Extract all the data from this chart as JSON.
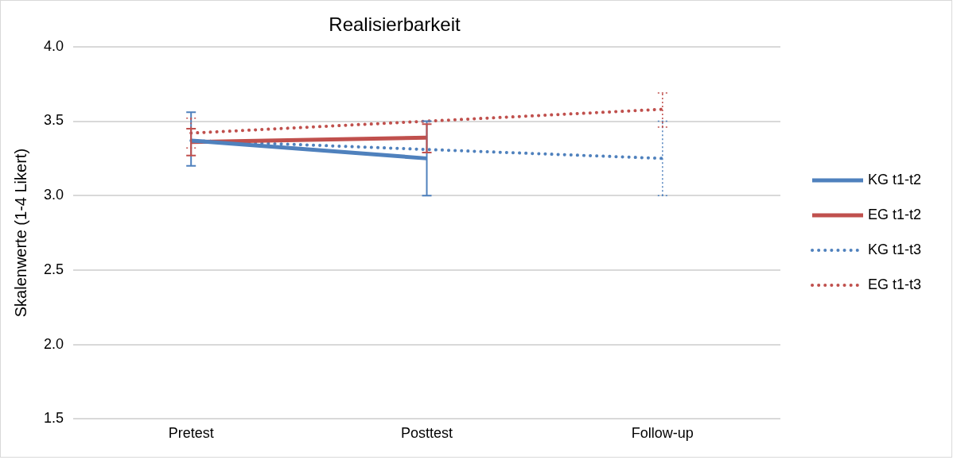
{
  "chart_data": {
    "type": "line",
    "title": "Realisierbarkeit",
    "ylabel": "Skalenwerte (1-4 Likert)",
    "categories": [
      "Pretest",
      "Posttest",
      "Follow-up"
    ],
    "series": [
      {
        "name": "KG t1-t2",
        "color": "#4f81bd",
        "line_style": "solid",
        "values": [
          3.37,
          3.25,
          null
        ],
        "errors": [
          [
            3.2,
            3.56
          ],
          [
            3.0,
            3.5
          ],
          null
        ]
      },
      {
        "name": "EG t1-t2",
        "color": "#c0504d",
        "line_style": "solid",
        "values": [
          3.36,
          3.39,
          null
        ],
        "errors": [
          [
            3.27,
            3.45
          ],
          [
            3.29,
            3.48
          ],
          null
        ]
      },
      {
        "name": "KG t1-t3",
        "color": "#4f81bd",
        "line_style": "dotted",
        "values": [
          3.37,
          3.31,
          3.25
        ],
        "errors": [
          null,
          null,
          [
            3.0,
            3.5
          ]
        ]
      },
      {
        "name": "EG t1-t3",
        "color": "#c0504d",
        "line_style": "dotted",
        "values": [
          3.42,
          3.5,
          3.58
        ],
        "errors": [
          [
            3.32,
            3.52
          ],
          null,
          [
            3.46,
            3.69
          ]
        ]
      }
    ],
    "ylim": [
      1.5,
      4.0
    ],
    "yticks": [
      1.5,
      {
        "value": 2,
        "label": "2.0"
      },
      2.5,
      {
        "value": 3,
        "label": "3.0"
      },
      3.5,
      {
        "value": 4,
        "label": "4.0"
      }
    ],
    "grid": "y",
    "legend": "right",
    "marker": "none"
  }
}
